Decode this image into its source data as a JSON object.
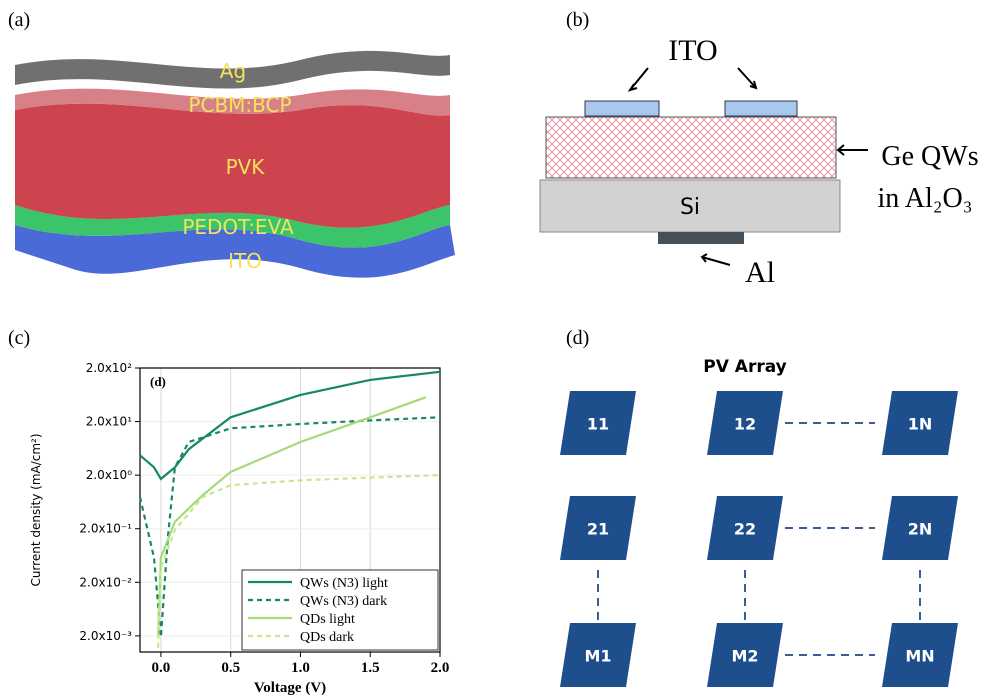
{
  "panels": {
    "a": {
      "letter": "(a)",
      "layers": [
        "Ag",
        "PCBM:BCP",
        "PVK",
        "PEDOT:EVA",
        "ITO"
      ]
    },
    "b": {
      "letter": "(b)",
      "electrode": "ITO",
      "film": [
        "Ge QWs",
        "in Al₂O₃"
      ],
      "substrate": "Si",
      "back_contact": "Al"
    },
    "c": {
      "letter": "(c)"
    },
    "d": {
      "letter": "(d)",
      "title": "PV Array",
      "modules": [
        [
          "11",
          "12",
          "1N"
        ],
        [
          "21",
          "22",
          "2N"
        ],
        [
          "M1",
          "M2",
          "MN"
        ]
      ]
    }
  },
  "chart_data": {
    "type": "line",
    "annotation": "(d)",
    "x_label": "Voltage (V)",
    "y_label": "Current density (mA/cm²)",
    "yscale": "log",
    "grid": true,
    "legend": "lower right",
    "xlim": [
      -0.15,
      2.0
    ],
    "ylim": [
      0.001,
      200
    ],
    "xticks": [
      {
        "value": 0,
        "label": "0.0"
      },
      0.5,
      {
        "value": 1,
        "label": "1.0"
      },
      1.5,
      {
        "value": 2,
        "label": "2.0"
      }
    ],
    "yticks": [
      {
        "value": 0.002,
        "label": "2.0x10⁻³"
      },
      {
        "value": 0.02,
        "label": "2.0x10⁻²"
      },
      {
        "value": 0.2,
        "label": "2.0x10⁻¹"
      },
      {
        "value": 2,
        "label": "2.0x10⁰"
      },
      {
        "value": 20,
        "label": "2.0x10¹"
      },
      {
        "value": 200,
        "label": "2.0x10²"
      }
    ],
    "series": [
      {
        "name": "QWs (N3) light",
        "color": "#178a5c",
        "dash": false,
        "x": [
          -0.15,
          -0.05,
          0,
          0.1,
          0.2,
          0.5,
          1,
          1.5,
          2
        ],
        "values": [
          4.7,
          2.8,
          1.7,
          2.8,
          6.1,
          24,
          63,
          120,
          170
        ]
      },
      {
        "name": "QWs (N3) dark",
        "color": "#178a5c",
        "dash": true,
        "x": [
          -0.15,
          -0.05,
          0,
          0.05,
          0.1,
          0.2,
          0.5,
          1,
          1.5,
          2
        ],
        "values": [
          0.78,
          0.058,
          0.0019,
          0.14,
          2.8,
          8.3,
          15,
          18,
          21,
          24
        ]
      },
      {
        "name": "QDs light",
        "color": "#a6d97a",
        "dash": false,
        "x": [
          -0.02,
          0,
          0.1,
          0.3,
          0.5,
          1,
          1.5,
          1.9
        ],
        "values": [
          0.0019,
          0.058,
          0.27,
          0.85,
          2.3,
          8.3,
          24,
          57
        ]
      },
      {
        "name": "QDs dark",
        "color": "#c9e68e",
        "dash": true,
        "x": [
          -0.02,
          0,
          0.1,
          0.3,
          0.5,
          1,
          1.5,
          2
        ],
        "values": [
          0.0012,
          0.038,
          0.19,
          0.78,
          1.3,
          1.6,
          1.8,
          2.0
        ]
      }
    ]
  }
}
